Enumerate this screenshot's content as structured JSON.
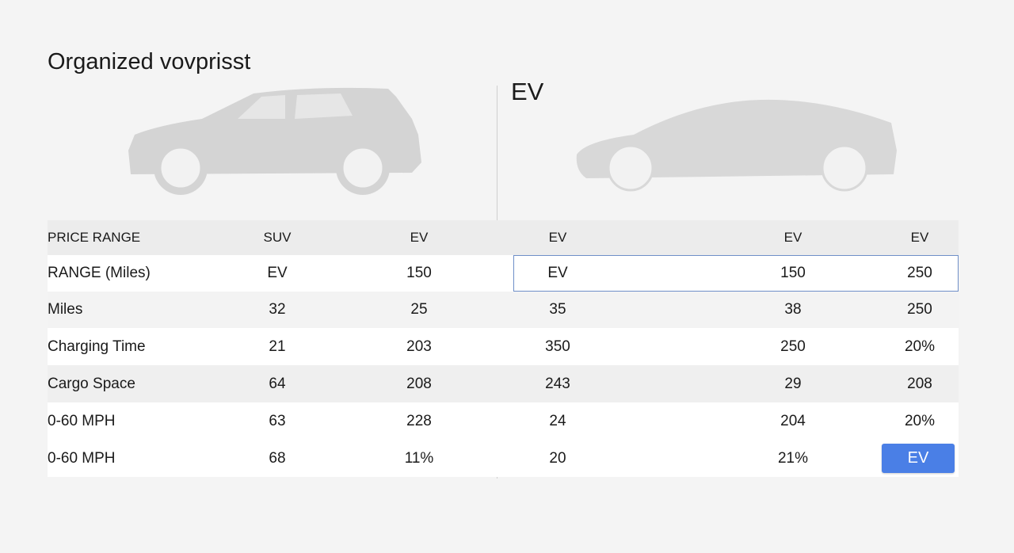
{
  "header": {
    "title": "Organized vovprisst",
    "section": "EV"
  },
  "table": {
    "header": [
      "PRICE RANGE",
      "SUV",
      "EV",
      "EV",
      "EV",
      "EV"
    ],
    "rows": [
      [
        "RANGE (Miles)",
        "EV",
        "150",
        "EV",
        "150",
        "250"
      ],
      [
        "Miles",
        "32",
        "25",
        "35",
        "38",
        "250"
      ],
      [
        "Charging Time",
        "21",
        "203",
        "350",
        "250",
        "20%"
      ],
      [
        "Cargo Space",
        "64",
        "208",
        "243",
        "29",
        "208"
      ],
      [
        "0-60 MPH",
        "63",
        "228",
        "24",
        "204",
        "20%"
      ],
      [
        "0-60 MPH",
        "68",
        "11%",
        "20",
        "21%",
        "EV"
      ]
    ]
  }
}
